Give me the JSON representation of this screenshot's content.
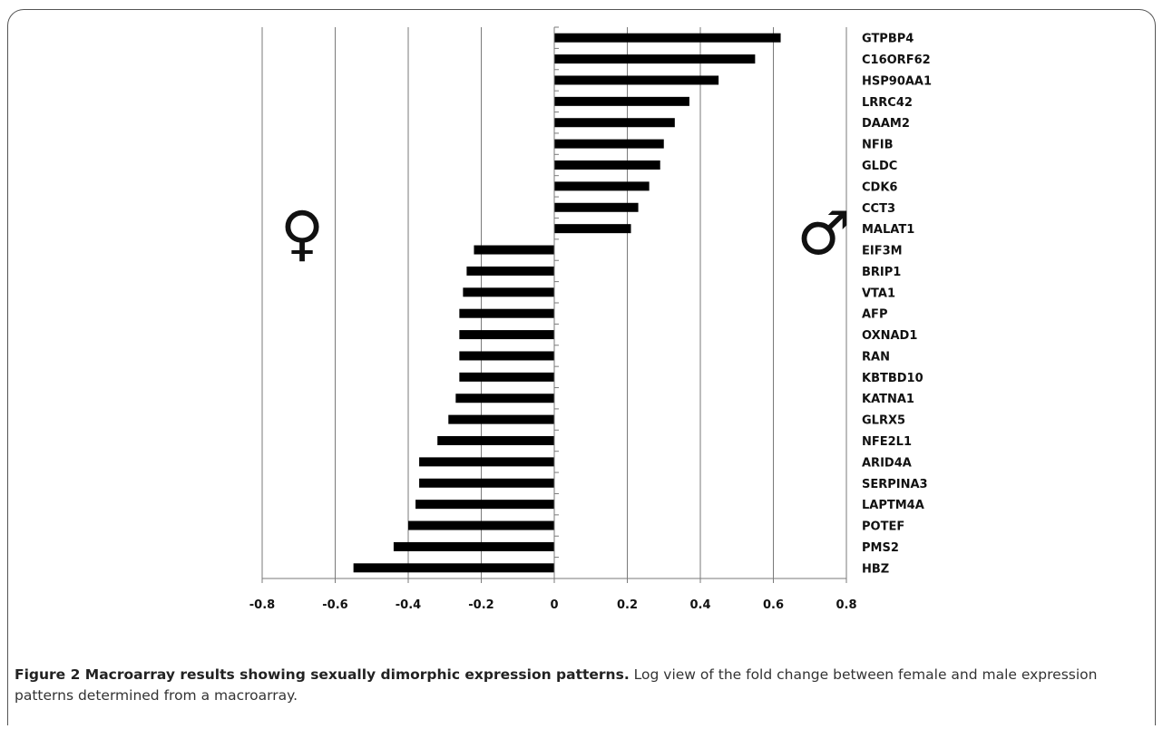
{
  "chart_data": {
    "type": "bar",
    "orientation": "horizontal",
    "categories": [
      "GTPBP4",
      "C16ORF62",
      "HSP90AA1",
      "LRRC42",
      "DAAM2",
      "NFIB",
      "GLDC",
      "CDK6",
      "CCT3",
      "MALAT1",
      "EIF3M",
      "BRIP1",
      "VTA1",
      "AFP",
      "OXNAD1",
      "RAN",
      "KBTBD10",
      "KATNA1",
      "GLRX5",
      "NFE2L1",
      "ARID4A",
      "SERPINA3",
      "LAPTM4A",
      "POTEF",
      "PMS2",
      "HBZ"
    ],
    "values": [
      0.62,
      0.55,
      0.45,
      0.37,
      0.33,
      0.3,
      0.29,
      0.26,
      0.23,
      0.21,
      -0.22,
      -0.24,
      -0.25,
      -0.26,
      -0.26,
      -0.26,
      -0.26,
      -0.27,
      -0.29,
      -0.32,
      -0.37,
      -0.37,
      -0.38,
      -0.4,
      -0.44,
      -0.55
    ],
    "xlim": [
      -0.8,
      0.8
    ],
    "xticks": [
      "-0.8",
      "-0.6",
      "-0.4",
      "-0.2",
      "0",
      "0.2",
      "0.4",
      "0.6",
      "0.8"
    ],
    "xtick_values": [
      -0.8,
      -0.6,
      -0.4,
      -0.2,
      0,
      0.2,
      0.4,
      0.6,
      0.8
    ],
    "grid": "vertical",
    "bar_color": "#000000",
    "annotations": {
      "female": "♀",
      "male": "♂"
    }
  },
  "caption": {
    "title": "Figure 2 Macroarray results showing sexually dimorphic expression patterns.",
    "text": "Log view of the fold change between female and male expression patterns determined from a macroarray."
  }
}
